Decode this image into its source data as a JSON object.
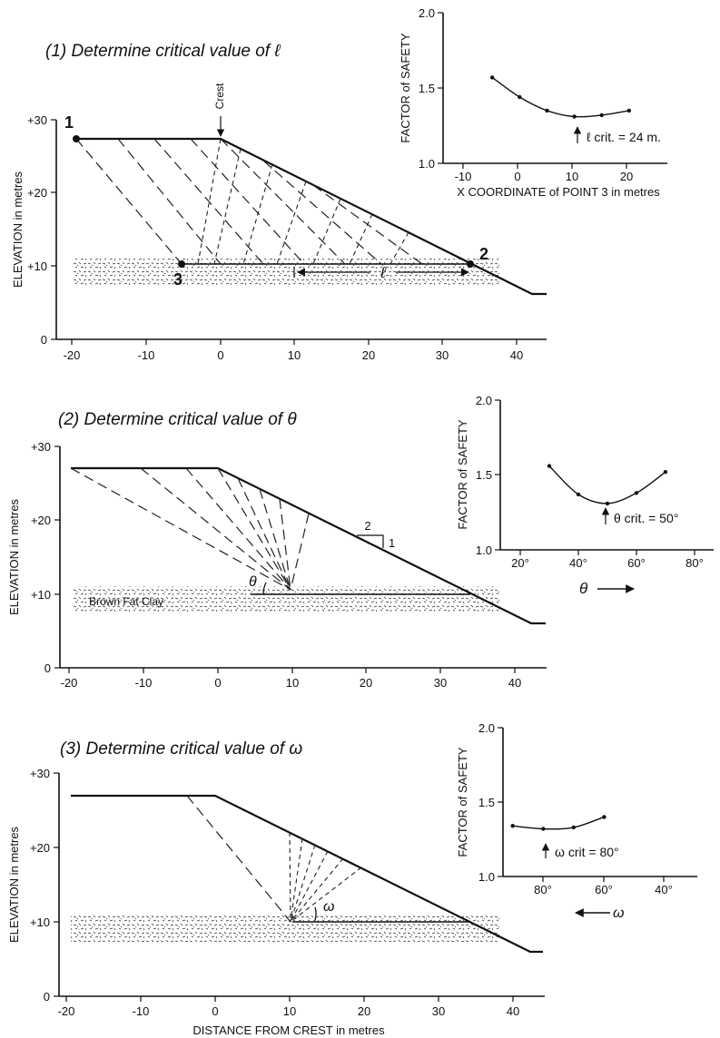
{
  "panels": [
    {
      "title": "(1) Determine critical value of ℓ",
      "y_axis_label": "ELEVATION in metres",
      "y_ticks": [
        "+30",
        "+20",
        "+10",
        "0"
      ],
      "x_ticks": [
        "-20",
        "-10",
        "0",
        "10",
        "20",
        "30",
        "40"
      ],
      "crest_label": "Crest",
      "point_labels": [
        "1",
        "2",
        "3"
      ],
      "length_label": "ℓ",
      "inset": {
        "y_label": "FACTOR of SAFETY",
        "y_ticks": [
          "2.0",
          "1.5",
          "1.0"
        ],
        "x_ticks": [
          "-10",
          "0",
          "10",
          "20"
        ],
        "x_label": "X COORDINATE of POINT 3 in metres",
        "annotation": "ℓ crit. = 24 m."
      }
    },
    {
      "title": "(2) Determine critical value of θ",
      "y_axis_label": "ELEVATION in metres",
      "y_ticks": [
        "+30",
        "+20",
        "+10",
        "0"
      ],
      "x_ticks": [
        "-20",
        "-10",
        "0",
        "10",
        "20",
        "30",
        "40"
      ],
      "soil_label": "Brown Fat Clay",
      "angle_label": "θ",
      "slope_ratio": [
        "2",
        "1"
      ],
      "inset": {
        "y_label": "FACTOR of SAFETY",
        "y_ticks": [
          "2.0",
          "1.5",
          "1.0"
        ],
        "x_ticks": [
          "20°",
          "40°",
          "60°",
          "80°"
        ],
        "x_label": "θ",
        "annotation": "θ crit. = 50°"
      }
    },
    {
      "title": "(3) Determine critical value of ω",
      "y_axis_label": "ELEVATION in metres",
      "y_ticks": [
        "+30",
        "+20",
        "+10",
        "0"
      ],
      "x_ticks": [
        "-20",
        "-10",
        "0",
        "10",
        "20",
        "30",
        "40"
      ],
      "x_axis_label": "DISTANCE FROM CREST in metres",
      "angle_label": "ω",
      "inset": {
        "y_label": "FACTOR of SAFETY",
        "y_ticks": [
          "2.0",
          "1.5",
          "1.0"
        ],
        "x_ticks": [
          "80°",
          "60°",
          "40°"
        ],
        "x_label": "ω",
        "annotation": "ω crit = 80°"
      }
    }
  ],
  "factor_of_safety_curves": [
    {
      "x": [
        -5,
        0,
        5,
        10,
        15,
        20
      ],
      "y": [
        1.57,
        1.44,
        1.35,
        1.31,
        1.32,
        1.35
      ]
    },
    {
      "x": [
        30,
        40,
        50,
        60,
        70
      ],
      "y": [
        1.56,
        1.37,
        1.31,
        1.38,
        1.52
      ]
    },
    {
      "x": [
        90,
        80,
        70,
        60
      ],
      "y": [
        1.34,
        1.32,
        1.33,
        1.4
      ]
    }
  ]
}
